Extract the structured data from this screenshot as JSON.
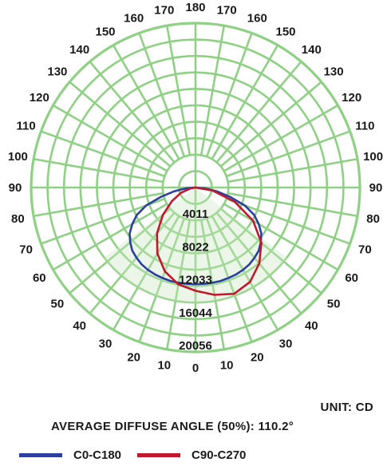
{
  "chart_data": {
    "type": "polar",
    "unit_text": "UNIT: CD",
    "beam_text": "AVERAGE DIFFUSE ANGLE (50%): 110.2°",
    "ring_values": [
      "4011",
      "8022",
      "12033",
      "16044",
      "20056"
    ],
    "angle_labels": [
      "0",
      "10",
      "20",
      "30",
      "40",
      "50",
      "60",
      "70",
      "80",
      "90",
      "100",
      "110",
      "120",
      "130",
      "140",
      "150",
      "160",
      "170",
      "180"
    ],
    "max_value": 20056,
    "grid_color": "#8fd184",
    "series": [
      {
        "name": "C0-C180",
        "color": "#2b3fa0",
        "angles": [
          -90,
          -85,
          -80,
          -75,
          -70,
          -65,
          -60,
          -55,
          -50,
          -45,
          -40,
          -35,
          -30,
          -25,
          -20,
          -15,
          -10,
          -5,
          0,
          5,
          10,
          15,
          20,
          25,
          30,
          35,
          40,
          45,
          50,
          55,
          60,
          65,
          70,
          75,
          80,
          85,
          90
        ],
        "values": [
          0,
          1200,
          2600,
          4300,
          6400,
          7900,
          8900,
          9800,
          10400,
          10900,
          11200,
          11450,
          11600,
          11700,
          11750,
          11800,
          11800,
          11800,
          11800,
          11800,
          11800,
          11800,
          11750,
          11700,
          11600,
          11450,
          11200,
          10900,
          10400,
          9800,
          8900,
          7900,
          6400,
          4300,
          2600,
          1200,
          0
        ]
      },
      {
        "name": "C90-C270",
        "color": "#c0182c",
        "angles": [
          -90,
          -80,
          -70,
          -60,
          -50,
          -40,
          -30,
          -20,
          -10,
          0,
          10,
          20,
          30,
          40,
          50,
          60,
          70,
          80,
          90
        ],
        "values": [
          0,
          600,
          1900,
          3300,
          5200,
          7300,
          9300,
          10900,
          12000,
          12600,
          13300,
          13800,
          13300,
          12100,
          10500,
          8100,
          5100,
          2100,
          0
        ]
      }
    ]
  }
}
